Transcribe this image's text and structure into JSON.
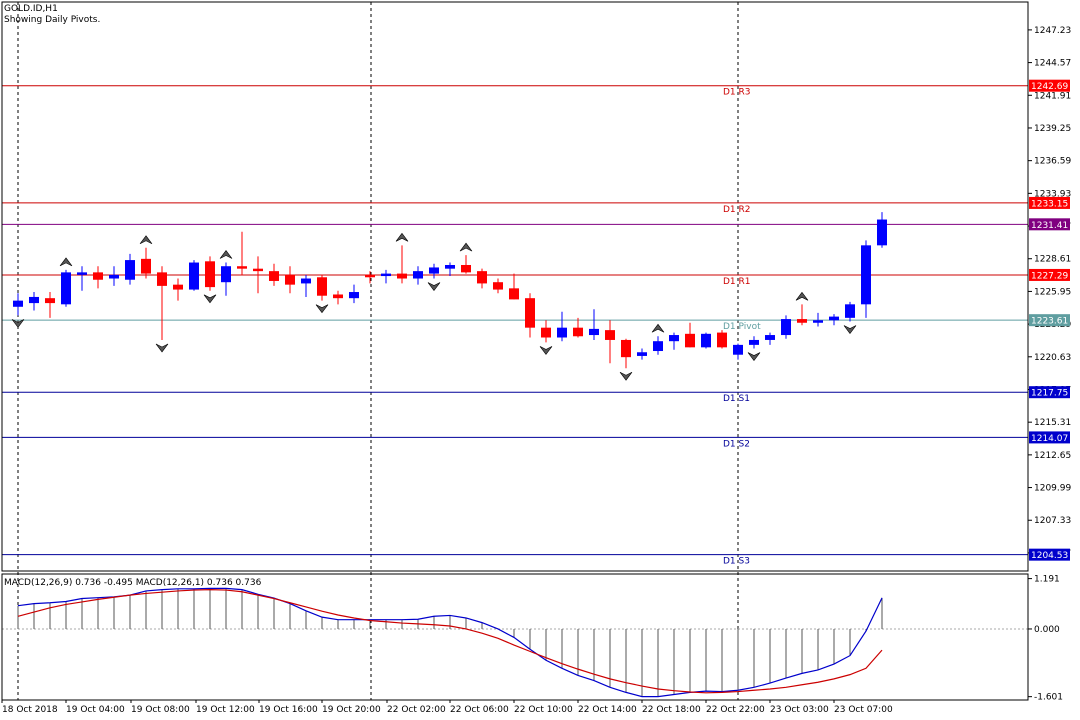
{
  "header": {
    "symbol": "GOLD.ID,H1",
    "subtitle": "Showing Daily Pivots."
  },
  "macd_header": "MACD(12,26,9) 0.736 -0.495 MACD(12,26,1) 0.736 0.736",
  "colors": {
    "bull": "#0000ff",
    "bear": "#ff0000",
    "resistance": "#cc0000",
    "support": "#000099",
    "pivot": "#5f9ea0",
    "current": "#800080",
    "macd_main": "#0000cc",
    "macd_signal": "#cc0000"
  },
  "chart_data": {
    "type": "candlestick",
    "price_axis": {
      "ticks": [
        "1247.23",
        "1244.57",
        "1241.91",
        "1239.25",
        "1236.59",
        "1233.93",
        "1231.27",
        "1228.61",
        "1225.95",
        "1223.29",
        "1220.63",
        "1217.97",
        "1215.31",
        "1212.65",
        "1209.99",
        "1207.33",
        "1204.67"
      ],
      "range": [
        1203.2,
        1249.5
      ]
    },
    "time_axis": {
      "labels": [
        "18 Oct 2018",
        "19 Oct 04:00",
        "19 Oct 08:00",
        "19 Oct 12:00",
        "19 Oct 16:00",
        "19 Oct 20:00",
        "22 Oct 02:00",
        "22 Oct 06:00",
        "22 Oct 10:00",
        "22 Oct 14:00",
        "22 Oct 18:00",
        "22 Oct 22:00",
        "23 Oct 03:00",
        "23 Oct 07:00"
      ]
    },
    "levels": [
      {
        "name": "D1 R3",
        "value": 1242.69,
        "label": "1242.69",
        "kind": "resistance"
      },
      {
        "name": "D1 R2",
        "value": 1233.15,
        "label": "1233.15",
        "kind": "resistance"
      },
      {
        "name": "",
        "value": 1231.41,
        "label": "1231.41",
        "kind": "current"
      },
      {
        "name": "D1 R1",
        "value": 1227.29,
        "label": "1227.29",
        "kind": "resistance"
      },
      {
        "name": "D1 Pivot",
        "value": 1223.61,
        "label": "1223.61",
        "kind": "pivot"
      },
      {
        "name": "D1 S1",
        "value": 1217.75,
        "label": "1217.75",
        "kind": "support"
      },
      {
        "name": "D1 S2",
        "value": 1214.07,
        "label": "1214.07",
        "kind": "support"
      },
      {
        "name": "D1 S3",
        "value": 1204.53,
        "label": "1204.53",
        "kind": "support"
      }
    ],
    "candles": [
      {
        "o": 1224.7,
        "h": 1225.8,
        "l": 1224.0,
        "c": 1225.2
      },
      {
        "o": 1225.0,
        "h": 1225.9,
        "l": 1224.4,
        "c": 1225.5
      },
      {
        "o": 1225.4,
        "h": 1225.9,
        "l": 1223.8,
        "c": 1225.0
      },
      {
        "o": 1224.9,
        "h": 1227.7,
        "l": 1224.7,
        "c": 1227.5
      },
      {
        "o": 1227.3,
        "h": 1228.0,
        "l": 1226.0,
        "c": 1227.5
      },
      {
        "o": 1227.5,
        "h": 1228.0,
        "l": 1226.2,
        "c": 1226.9
      },
      {
        "o": 1227.0,
        "h": 1228.0,
        "l": 1226.4,
        "c": 1227.3
      },
      {
        "o": 1226.9,
        "h": 1229.0,
        "l": 1226.5,
        "c": 1228.5
      },
      {
        "o": 1228.6,
        "h": 1229.5,
        "l": 1227.0,
        "c": 1227.4
      },
      {
        "o": 1227.5,
        "h": 1228.0,
        "l": 1222.0,
        "c": 1226.4
      },
      {
        "o": 1226.5,
        "h": 1227.0,
        "l": 1225.2,
        "c": 1226.1
      },
      {
        "o": 1226.1,
        "h": 1228.5,
        "l": 1226.0,
        "c": 1228.3
      },
      {
        "o": 1228.4,
        "h": 1228.8,
        "l": 1226.0,
        "c": 1226.3
      },
      {
        "o": 1226.7,
        "h": 1228.3,
        "l": 1225.6,
        "c": 1228.0
      },
      {
        "o": 1228.0,
        "h": 1230.8,
        "l": 1227.3,
        "c": 1227.8
      },
      {
        "o": 1227.8,
        "h": 1228.8,
        "l": 1225.8,
        "c": 1227.6
      },
      {
        "o": 1227.6,
        "h": 1228.2,
        "l": 1226.4,
        "c": 1226.8
      },
      {
        "o": 1227.3,
        "h": 1228.0,
        "l": 1225.8,
        "c": 1226.5
      },
      {
        "o": 1226.6,
        "h": 1227.3,
        "l": 1225.5,
        "c": 1227.0
      },
      {
        "o": 1227.1,
        "h": 1227.3,
        "l": 1225.2,
        "c": 1225.6
      },
      {
        "o": 1225.7,
        "h": 1226.0,
        "l": 1224.9,
        "c": 1225.4
      },
      {
        "o": 1225.4,
        "h": 1226.5,
        "l": 1225.0,
        "c": 1225.9
      },
      {
        "o": 1227.3,
        "h": 1227.6,
        "l": 1226.6,
        "c": 1227.1
      },
      {
        "o": 1227.2,
        "h": 1227.7,
        "l": 1226.6,
        "c": 1227.4
      },
      {
        "o": 1227.4,
        "h": 1229.7,
        "l": 1226.6,
        "c": 1227.0
      },
      {
        "o": 1227.0,
        "h": 1228.0,
        "l": 1226.5,
        "c": 1227.6
      },
      {
        "o": 1227.4,
        "h": 1228.2,
        "l": 1227.0,
        "c": 1227.9
      },
      {
        "o": 1227.8,
        "h": 1228.3,
        "l": 1227.2,
        "c": 1228.1
      },
      {
        "o": 1228.1,
        "h": 1228.9,
        "l": 1227.4,
        "c": 1227.5
      },
      {
        "o": 1227.6,
        "h": 1227.8,
        "l": 1226.2,
        "c": 1226.6
      },
      {
        "o": 1226.7,
        "h": 1227.0,
        "l": 1225.8,
        "c": 1226.1
      },
      {
        "o": 1226.2,
        "h": 1227.4,
        "l": 1225.3,
        "c": 1225.3
      },
      {
        "o": 1225.4,
        "h": 1225.8,
        "l": 1222.2,
        "c": 1223.0
      },
      {
        "o": 1223.0,
        "h": 1223.6,
        "l": 1221.8,
        "c": 1222.2
      },
      {
        "o": 1222.2,
        "h": 1224.3,
        "l": 1221.9,
        "c": 1223.0
      },
      {
        "o": 1223.0,
        "h": 1223.8,
        "l": 1222.2,
        "c": 1222.3
      },
      {
        "o": 1222.4,
        "h": 1224.5,
        "l": 1222.0,
        "c": 1222.9
      },
      {
        "o": 1222.8,
        "h": 1223.6,
        "l": 1220.1,
        "c": 1222.0
      },
      {
        "o": 1222.0,
        "h": 1222.1,
        "l": 1219.7,
        "c": 1220.6
      },
      {
        "o": 1220.7,
        "h": 1221.3,
        "l": 1220.4,
        "c": 1221.0
      },
      {
        "o": 1221.1,
        "h": 1222.3,
        "l": 1220.8,
        "c": 1221.9
      },
      {
        "o": 1221.9,
        "h": 1222.6,
        "l": 1221.2,
        "c": 1222.4
      },
      {
        "o": 1222.5,
        "h": 1223.4,
        "l": 1221.4,
        "c": 1221.4
      },
      {
        "o": 1221.4,
        "h": 1222.6,
        "l": 1221.3,
        "c": 1222.5
      },
      {
        "o": 1222.6,
        "h": 1222.8,
        "l": 1221.3,
        "c": 1221.4
      },
      {
        "o": 1220.8,
        "h": 1221.7,
        "l": 1220.4,
        "c": 1221.6
      },
      {
        "o": 1221.6,
        "h": 1222.3,
        "l": 1221.3,
        "c": 1222.0
      },
      {
        "o": 1222.0,
        "h": 1222.6,
        "l": 1221.6,
        "c": 1222.4
      },
      {
        "o": 1222.4,
        "h": 1224.0,
        "l": 1222.1,
        "c": 1223.7
      },
      {
        "o": 1223.7,
        "h": 1224.9,
        "l": 1223.2,
        "c": 1223.4
      },
      {
        "o": 1223.4,
        "h": 1224.2,
        "l": 1223.1,
        "c": 1223.6
      },
      {
        "o": 1223.6,
        "h": 1224.1,
        "l": 1223.2,
        "c": 1223.9
      },
      {
        "o": 1223.8,
        "h": 1225.1,
        "l": 1223.5,
        "c": 1224.9
      },
      {
        "o": 1224.9,
        "h": 1230.1,
        "l": 1223.8,
        "c": 1229.7
      },
      {
        "o": 1229.7,
        "h": 1232.4,
        "l": 1229.5,
        "c": 1231.8
      }
    ],
    "fractals_up": [
      3,
      8,
      13,
      24,
      28,
      40,
      49
    ],
    "fractals_down": [
      0,
      9,
      12,
      19,
      26,
      33,
      38,
      46,
      52
    ],
    "macd": {
      "axis_ticks": [
        "1.191",
        "0.000",
        "-1.601"
      ],
      "range": [
        -1.68,
        1.3
      ],
      "histogram": [
        0.55,
        0.6,
        0.62,
        0.65,
        0.72,
        0.74,
        0.76,
        0.8,
        0.9,
        0.93,
        0.95,
        0.95,
        0.96,
        0.96,
        0.93,
        0.82,
        0.73,
        0.6,
        0.43,
        0.28,
        0.22,
        0.22,
        0.22,
        0.22,
        0.22,
        0.23,
        0.3,
        0.32,
        0.26,
        0.15,
        0.0,
        -0.2,
        -0.48,
        -0.74,
        -0.93,
        -1.1,
        -1.22,
        -1.38,
        -1.5,
        -1.6,
        -1.6,
        -1.55,
        -1.5,
        -1.47,
        -1.48,
        -1.45,
        -1.38,
        -1.28,
        -1.16,
        -1.05,
        -0.97,
        -0.83,
        -0.63,
        -0.05,
        0.736
      ],
      "main": [
        0.55,
        0.6,
        0.62,
        0.65,
        0.72,
        0.74,
        0.76,
        0.8,
        0.9,
        0.93,
        0.95,
        0.95,
        0.96,
        0.96,
        0.93,
        0.82,
        0.73,
        0.6,
        0.43,
        0.28,
        0.22,
        0.22,
        0.22,
        0.22,
        0.22,
        0.23,
        0.3,
        0.32,
        0.26,
        0.15,
        0.0,
        -0.2,
        -0.48,
        -0.74,
        -0.93,
        -1.1,
        -1.22,
        -1.38,
        -1.5,
        -1.6,
        -1.6,
        -1.55,
        -1.5,
        -1.47,
        -1.48,
        -1.45,
        -1.38,
        -1.28,
        -1.16,
        -1.05,
        -0.97,
        -0.83,
        -0.63,
        -0.05,
        0.736
      ],
      "signal": [
        0.3,
        0.4,
        0.5,
        0.58,
        0.64,
        0.7,
        0.75,
        0.8,
        0.84,
        0.87,
        0.9,
        0.92,
        0.93,
        0.92,
        0.88,
        0.8,
        0.72,
        0.62,
        0.52,
        0.42,
        0.33,
        0.26,
        0.2,
        0.17,
        0.14,
        0.12,
        0.1,
        0.07,
        0.0,
        -0.1,
        -0.22,
        -0.38,
        -0.53,
        -0.68,
        -0.82,
        -0.95,
        -1.07,
        -1.18,
        -1.27,
        -1.35,
        -1.42,
        -1.46,
        -1.49,
        -1.51,
        -1.5,
        -1.48,
        -1.45,
        -1.42,
        -1.38,
        -1.32,
        -1.26,
        -1.18,
        -1.08,
        -0.93,
        -0.5
      ]
    }
  }
}
